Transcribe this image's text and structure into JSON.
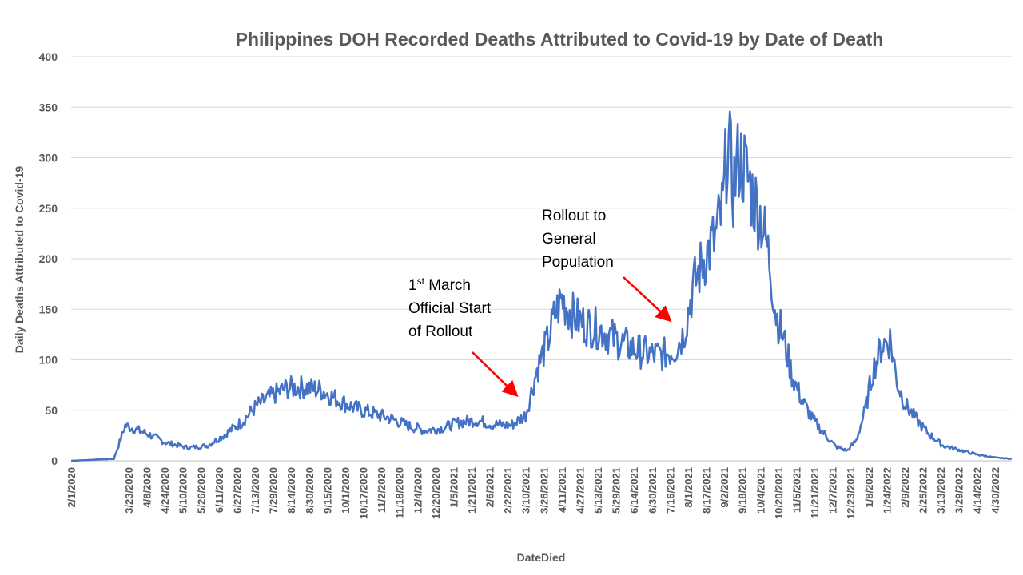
{
  "chart_data": {
    "type": "line",
    "title": "Philippines DOH Recorded Deaths Attributed to Covid-19 by Date of Death",
    "xlabel": "DateDied",
    "ylabel": "Daily Deaths Attributed to Covid-19",
    "ylim": [
      0,
      400
    ],
    "yticks": [
      0,
      50,
      100,
      150,
      200,
      250,
      300,
      350,
      400
    ],
    "grid": true,
    "legend": "none",
    "line_color": "#4472C4",
    "x_start": "2/1/2020",
    "x_end": "5/15/2022",
    "x_tick_labels": [
      "2/1/2020",
      "3/23/2020",
      "4/8/2020",
      "4/24/2020",
      "5/10/2020",
      "5/26/2020",
      "6/11/2020",
      "6/27/2020",
      "7/13/2020",
      "7/29/2020",
      "8/14/2020",
      "8/30/2020",
      "9/15/2020",
      "10/1/2020",
      "10/17/2020",
      "11/2/2020",
      "11/18/2020",
      "12/4/2020",
      "12/20/2020",
      "1/5/2021",
      "1/21/2021",
      "2/6/2021",
      "2/22/2021",
      "3/10/2021",
      "3/26/2021",
      "4/11/2021",
      "4/27/2021",
      "5/13/2021",
      "5/29/2021",
      "6/14/2021",
      "6/30/2021",
      "7/16/2021",
      "8/1/2021",
      "8/17/2021",
      "9/2/2021",
      "9/18/2021",
      "10/4/2021",
      "10/20/2021",
      "11/5/2021",
      "11/21/2021",
      "12/7/2021",
      "12/23/2021",
      "1/8/2022",
      "1/24/2022",
      "2/9/2022",
      "2/25/2022",
      "3/13/2022",
      "3/29/2022",
      "4/14/2022",
      "4/30/2022"
    ],
    "series": [
      {
        "x": [
          "2/1/2020",
          "3/10/2020",
          "3/20/2020",
          "4/10/2020",
          "4/25/2020",
          "5/15/2020",
          "6/1/2020",
          "6/15/2020",
          "7/1/2020",
          "7/15/2020",
          "7/29/2020",
          "8/10/2020",
          "8/25/2020",
          "9/10/2020",
          "9/25/2020",
          "10/10/2020",
          "10/25/2020",
          "11/10/2020",
          "11/25/2020",
          "12/10/2020",
          "12/25/2020",
          "1/10/2021",
          "1/25/2021",
          "2/10/2021",
          "2/25/2021",
          "3/10/2021",
          "3/20/2021",
          "3/30/2021",
          "4/5/2021",
          "4/11/2021",
          "4/20/2021",
          "5/1/2021",
          "5/15/2021",
          "6/1/2021",
          "6/15/2021",
          "6/30/2021",
          "7/10/2021",
          "7/20/2021",
          "7/28/2021",
          "8/5/2021",
          "8/15/2021",
          "8/25/2021",
          "9/1/2021",
          "9/5/2021",
          "9/10/2021",
          "9/15/2021",
          "9/20/2021",
          "9/28/2021",
          "10/5/2021",
          "10/12/2021",
          "10/18/2021",
          "10/25/2021",
          "11/1/2021",
          "11/10/2021",
          "11/20/2021",
          "12/1/2021",
          "12/10/2021",
          "12/20/2021",
          "12/28/2021",
          "1/5/2022",
          "1/12/2022",
          "1/20/2022",
          "1/27/2022",
          "2/3/2022",
          "2/10/2022",
          "2/20/2022",
          "3/1/2022",
          "3/15/2022",
          "4/1/2022",
          "4/15/2022",
          "5/1/2022",
          "5/15/2022"
        ],
        "y": [
          0,
          2,
          35,
          26,
          18,
          13,
          15,
          25,
          38,
          55,
          65,
          72,
          73,
          70,
          60,
          52,
          47,
          42,
          35,
          30,
          32,
          38,
          40,
          36,
          35,
          45,
          90,
          120,
          145,
          160,
          145,
          135,
          130,
          118,
          110,
          105,
          105,
          110,
          125,
          170,
          200,
          220,
          250,
          320,
          270,
          300,
          290,
          260,
          240,
          200,
          145,
          120,
          85,
          60,
          40,
          25,
          14,
          10,
          20,
          50,
          90,
          115,
          120,
          75,
          55,
          40,
          28,
          15,
          10,
          6,
          3,
          2
        ]
      }
    ],
    "annotations": [
      {
        "lines": [
          "1st March",
          "Official Start",
          "of Rollout"
        ],
        "date": "3/1/2021",
        "arrow_color": "#ff0000"
      },
      {
        "lines": [
          "Rollout to",
          "General",
          "Population"
        ],
        "date": "7/15/2021",
        "arrow_color": "#ff0000"
      }
    ]
  }
}
